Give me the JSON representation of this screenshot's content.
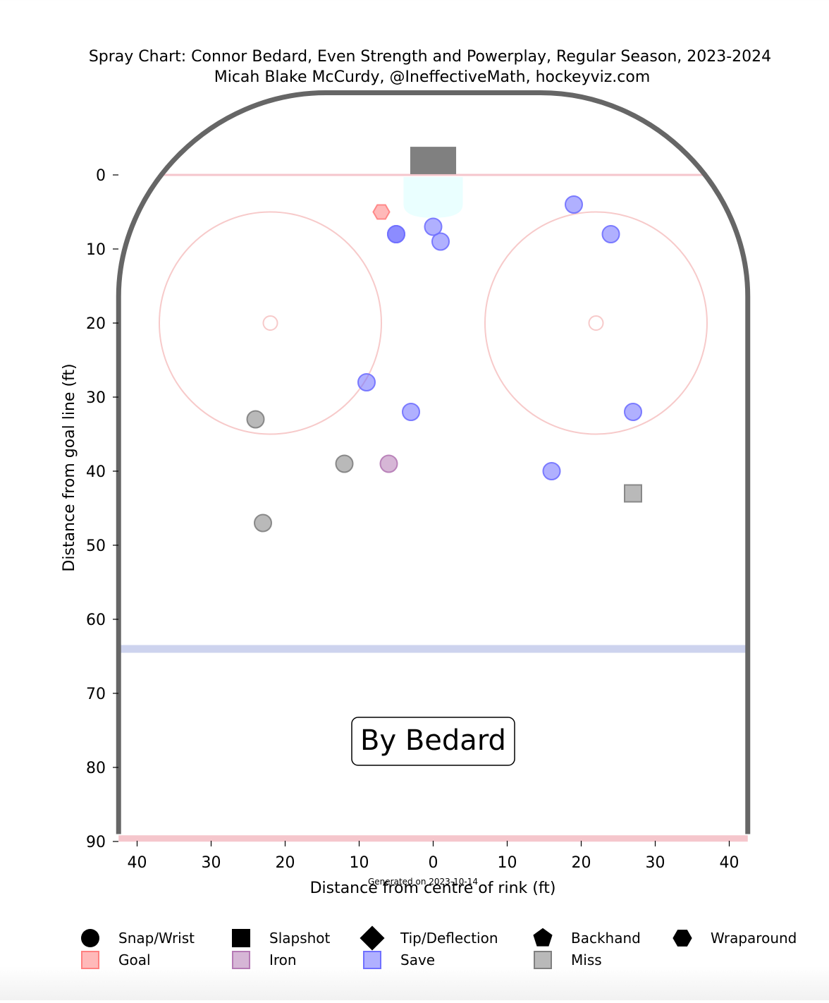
{
  "chart_data": {
    "type": "scatter",
    "title": "Spray Chart: Connor Bedard, Even Strength and Powerplay, Regular Season, 2023-2024",
    "subtitle": "Micah Blake McCurdy, @IneffectiveMath, hockeyviz.com",
    "xlabel": "Distance from centre of rink (ft)",
    "ylabel": "Distance from goal line (ft)",
    "footer": "Generated on 2023-10-14",
    "annotation": "By Bedard",
    "x_ticks": [
      {
        "value": -40,
        "label": "40"
      },
      {
        "value": -30,
        "label": "30"
      },
      {
        "value": -20,
        "label": "20"
      },
      {
        "value": -10,
        "label": "10"
      },
      {
        "value": 0,
        "label": "0"
      },
      {
        "value": 10,
        "label": "10"
      },
      {
        "value": 20,
        "label": "20"
      },
      {
        "value": 30,
        "label": "30"
      },
      {
        "value": 40,
        "label": "40"
      }
    ],
    "y_ticks": [
      0,
      10,
      20,
      30,
      40,
      50,
      60,
      70,
      80,
      90
    ],
    "xlim": [
      -42.5,
      42.5
    ],
    "ylim": [
      -11,
      90
    ],
    "y_inverted": true,
    "grid": false,
    "legend_placement": "bottom",
    "shot_types": [
      {
        "key": "snap_wrist",
        "label": "Snap/Wrist",
        "marker": "circle"
      },
      {
        "key": "slapshot",
        "label": "Slapshot",
        "marker": "square"
      },
      {
        "key": "tip",
        "label": "Tip/Deflection",
        "marker": "diamond"
      },
      {
        "key": "backhand",
        "label": "Backhand",
        "marker": "pentagon"
      },
      {
        "key": "wraparound",
        "label": "Wraparound",
        "marker": "hexagon"
      }
    ],
    "outcomes": [
      {
        "key": "goal",
        "label": "Goal",
        "color": "#ff8080"
      },
      {
        "key": "iron",
        "label": "Iron",
        "color": "#b57ab5"
      },
      {
        "key": "save",
        "label": "Save",
        "color": "#7070ff"
      },
      {
        "key": "miss",
        "label": "Miss",
        "color": "#808080"
      }
    ],
    "shots": [
      {
        "x": -7,
        "y": 5,
        "type": "wraparound",
        "outcome": "goal"
      },
      {
        "x": -5,
        "y": 8,
        "type": "snap_wrist",
        "outcome": "save"
      },
      {
        "x": -5,
        "y": 8,
        "type": "snap_wrist",
        "outcome": "save"
      },
      {
        "x": 0,
        "y": 7,
        "type": "snap_wrist",
        "outcome": "save"
      },
      {
        "x": 1,
        "y": 9,
        "type": "snap_wrist",
        "outcome": "save"
      },
      {
        "x": 19,
        "y": 4,
        "type": "snap_wrist",
        "outcome": "save"
      },
      {
        "x": 24,
        "y": 8,
        "type": "snap_wrist",
        "outcome": "save"
      },
      {
        "x": -9,
        "y": 28,
        "type": "snap_wrist",
        "outcome": "save"
      },
      {
        "x": -3,
        "y": 32,
        "type": "snap_wrist",
        "outcome": "save"
      },
      {
        "x": 27,
        "y": 32,
        "type": "snap_wrist",
        "outcome": "save"
      },
      {
        "x": 16,
        "y": 40,
        "type": "snap_wrist",
        "outcome": "save"
      },
      {
        "x": -24,
        "y": 33,
        "type": "snap_wrist",
        "outcome": "miss"
      },
      {
        "x": -12,
        "y": 39,
        "type": "snap_wrist",
        "outcome": "miss"
      },
      {
        "x": -23,
        "y": 47,
        "type": "snap_wrist",
        "outcome": "miss"
      },
      {
        "x": -6,
        "y": 39,
        "type": "snap_wrist",
        "outcome": "iron"
      },
      {
        "x": 27,
        "y": 43,
        "type": "slapshot",
        "outcome": "miss"
      }
    ],
    "colors": {
      "boards": "#666666",
      "goal_line": "#f5c6cc",
      "faceoff_circle": "#f7caca",
      "blue_line": "#cdd3ee",
      "crease": "#eaffff",
      "net": "#808080"
    }
  }
}
